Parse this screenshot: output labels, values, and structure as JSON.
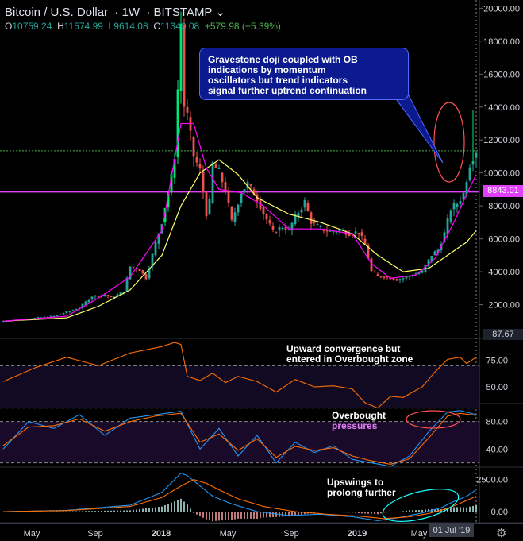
{
  "header": {
    "symbol": "Bitcoin / U.S. Dollar",
    "interval": "1W",
    "exchange": "BITSTAMP",
    "open_label": "O",
    "open": "10759.24",
    "high_label": "H",
    "high": "11574.99",
    "low_label": "L",
    "low": "9614.08",
    "close_label": "C",
    "close": "11340.08",
    "change": "+579.98 (+5.39%)"
  },
  "annotations": {
    "callout": [
      "Gravestone doji coupled with OB",
      "indications by momentum",
      "oscillators but trend indicators",
      "signal further uptrend continuation"
    ],
    "rsi_note": [
      "Upward convergence but",
      "entered in Overbought zone"
    ],
    "stoch_note_1": "Overbought",
    "stoch_note_2": "pressures",
    "macd_note": [
      "Upswings to",
      "prolong further"
    ]
  },
  "price_tags": {
    "horizontal_level": "8843.01",
    "crosshair": "87.67"
  },
  "date_tag": "01 Jul '19",
  "colors": {
    "up": "#26a69a",
    "up_bright": "#00e676",
    "down": "#ef5350",
    "sma_fast": "#ff00ff",
    "sma_slow": "#ffff66",
    "level_line": "#e040fb",
    "current_line": "#4caf50",
    "rsi": "#ff6d00",
    "stoch_k": "#2196f3",
    "stoch_d": "#ff6d00",
    "macd": "#2196f3",
    "signal": "#ff6d00",
    "callout_bg": "#0b1a8f"
  },
  "chart_data": [
    {
      "type": "candlestick",
      "panel": "price",
      "ylim": [
        0,
        20500
      ],
      "yticks": [
        "2000.00",
        "4000.00",
        "6000.00",
        "8000.00",
        "10000.00",
        "12000.00",
        "14000.00",
        "16000.00",
        "18000.00",
        "20000.00"
      ],
      "x_tick_labels": [
        "May",
        "Sep",
        "2018",
        "May",
        "Sep",
        "2019",
        "May"
      ],
      "horizontal_level": 8843.01,
      "current_price": 11340.08,
      "close_path": [
        [
          0,
          1000
        ],
        [
          8,
          1150
        ],
        [
          16,
          1300
        ],
        [
          24,
          1800
        ],
        [
          28,
          2500
        ],
        [
          32,
          2600
        ],
        [
          34,
          2400
        ],
        [
          38,
          2800
        ],
        [
          40,
          4300
        ],
        [
          43,
          4100
        ],
        [
          45,
          3600
        ],
        [
          48,
          5700
        ],
        [
          50,
          7000
        ],
        [
          53,
          9700
        ],
        [
          54,
          11000
        ],
        [
          55,
          15000
        ],
        [
          56,
          19000
        ],
        [
          57,
          14000
        ],
        [
          58,
          13400
        ],
        [
          60,
          11000
        ],
        [
          62,
          10100
        ],
        [
          64,
          7500
        ],
        [
          65,
          8200
        ],
        [
          66,
          10500
        ],
        [
          68,
          10000
        ],
        [
          70,
          8900
        ],
        [
          72,
          7000
        ],
        [
          75,
          8800
        ],
        [
          77,
          9300
        ],
        [
          80,
          8400
        ],
        [
          82,
          7500
        ],
        [
          85,
          6400
        ],
        [
          88,
          6700
        ],
        [
          90,
          6500
        ],
        [
          92,
          7300
        ],
        [
          95,
          8200
        ],
        [
          97,
          7000
        ],
        [
          100,
          6600
        ],
        [
          103,
          6400
        ],
        [
          106,
          6500
        ],
        [
          109,
          6300
        ],
        [
          112,
          6400
        ],
        [
          114,
          5600
        ],
        [
          116,
          4000
        ],
        [
          118,
          3700
        ],
        [
          120,
          3700
        ],
        [
          122,
          3600
        ],
        [
          124,
          3500
        ],
        [
          126,
          3600
        ],
        [
          129,
          3800
        ],
        [
          132,
          4000
        ],
        [
          135,
          5000
        ],
        [
          137,
          5300
        ],
        [
          139,
          6300
        ],
        [
          141,
          7800
        ],
        [
          143,
          8100
        ],
        [
          145,
          8700
        ],
        [
          147,
          10500
        ],
        [
          149,
          11340
        ]
      ],
      "sma_fast_path": [
        [
          0,
          1000
        ],
        [
          20,
          1300
        ],
        [
          30,
          2400
        ],
        [
          40,
          3700
        ],
        [
          50,
          6500
        ],
        [
          56,
          13000
        ],
        [
          60,
          13000
        ],
        [
          64,
          10300
        ],
        [
          68,
          9000
        ],
        [
          75,
          8800
        ],
        [
          82,
          8000
        ],
        [
          90,
          6600
        ],
        [
          100,
          6600
        ],
        [
          110,
          6300
        ],
        [
          116,
          4500
        ],
        [
          122,
          3600
        ],
        [
          130,
          3800
        ],
        [
          136,
          4800
        ],
        [
          142,
          7000
        ],
        [
          146,
          8700
        ],
        [
          149,
          9900
        ]
      ],
      "sma_slow_path": [
        [
          0,
          1000
        ],
        [
          20,
          1200
        ],
        [
          30,
          1900
        ],
        [
          40,
          2900
        ],
        [
          50,
          5000
        ],
        [
          56,
          8000
        ],
        [
          62,
          10000
        ],
        [
          68,
          10800
        ],
        [
          74,
          9900
        ],
        [
          80,
          8500
        ],
        [
          90,
          7500
        ],
        [
          100,
          7000
        ],
        [
          110,
          6300
        ],
        [
          118,
          5000
        ],
        [
          126,
          4000
        ],
        [
          134,
          4200
        ],
        [
          140,
          5000
        ],
        [
          146,
          5800
        ],
        [
          149,
          6500
        ]
      ]
    },
    {
      "type": "line",
      "panel": "rsi",
      "ylim": [
        35,
        95
      ],
      "yticks": [
        "50.00",
        "75.00"
      ],
      "levels": [
        70,
        30
      ],
      "values_path": [
        [
          0,
          55
        ],
        [
          10,
          68
        ],
        [
          20,
          78
        ],
        [
          30,
          70
        ],
        [
          40,
          82
        ],
        [
          50,
          88
        ],
        [
          54,
          92
        ],
        [
          56,
          90
        ],
        [
          58,
          60
        ],
        [
          62,
          56
        ],
        [
          66,
          63
        ],
        [
          70,
          54
        ],
        [
          74,
          60
        ],
        [
          80,
          55
        ],
        [
          86,
          45
        ],
        [
          92,
          57
        ],
        [
          98,
          50
        ],
        [
          104,
          51
        ],
        [
          110,
          48
        ],
        [
          114,
          35
        ],
        [
          118,
          30
        ],
        [
          122,
          41
        ],
        [
          126,
          40
        ],
        [
          132,
          50
        ],
        [
          136,
          64
        ],
        [
          140,
          76
        ],
        [
          144,
          78
        ],
        [
          146,
          72
        ],
        [
          149,
          78
        ]
      ]
    },
    {
      "type": "line",
      "panel": "stochastic",
      "ylim": [
        15,
        105
      ],
      "yticks": [
        "40.00",
        "80.00"
      ],
      "levels": [
        80,
        20
      ],
      "series": [
        {
          "values_path": [
            [
              0,
              40
            ],
            [
              8,
              80
            ],
            [
              16,
              70
            ],
            [
              24,
              90
            ],
            [
              32,
              60
            ],
            [
              40,
              85
            ],
            [
              48,
              90
            ],
            [
              56,
              95
            ],
            [
              62,
              40
            ],
            [
              68,
              70
            ],
            [
              74,
              30
            ],
            [
              80,
              60
            ],
            [
              86,
              20
            ],
            [
              92,
              50
            ],
            [
              98,
              35
            ],
            [
              104,
              45
            ],
            [
              110,
              25
            ],
            [
              116,
              20
            ],
            [
              122,
              15
            ],
            [
              128,
              30
            ],
            [
              134,
              65
            ],
            [
              140,
              94
            ],
            [
              144,
              96
            ],
            [
              149,
              90
            ]
          ]
        },
        {
          "values_path": [
            [
              0,
              45
            ],
            [
              8,
              72
            ],
            [
              16,
              74
            ],
            [
              24,
              84
            ],
            [
              32,
              66
            ],
            [
              40,
              80
            ],
            [
              48,
              88
            ],
            [
              56,
              92
            ],
            [
              62,
              50
            ],
            [
              68,
              62
            ],
            [
              74,
              38
            ],
            [
              80,
              55
            ],
            [
              86,
              28
            ],
            [
              92,
              44
            ],
            [
              98,
              38
            ],
            [
              104,
              42
            ],
            [
              110,
              30
            ],
            [
              116,
              23
            ],
            [
              122,
              18
            ],
            [
              128,
              26
            ],
            [
              134,
              56
            ],
            [
              140,
              88
            ],
            [
              144,
              92
            ],
            [
              149,
              89
            ]
          ]
        }
      ]
    },
    {
      "type": "line",
      "panel": "macd",
      "ylim": [
        -800,
        3400
      ],
      "yticks": [
        "0.00",
        "2500.00"
      ],
      "series": [
        {
          "values_path": [
            [
              0,
              0
            ],
            [
              20,
              100
            ],
            [
              40,
              500
            ],
            [
              50,
              1500
            ],
            [
              54,
              2500
            ],
            [
              56,
              3000
            ],
            [
              58,
              2800
            ],
            [
              62,
              2000
            ],
            [
              66,
              1200
            ],
            [
              72,
              600
            ],
            [
              80,
              0
            ],
            [
              90,
              -300
            ],
            [
              100,
              -200
            ],
            [
              110,
              -400
            ],
            [
              118,
              -700
            ],
            [
              124,
              -500
            ],
            [
              132,
              -100
            ],
            [
              138,
              300
            ],
            [
              142,
              800
            ],
            [
              146,
              1200
            ],
            [
              149,
              1700
            ]
          ]
        },
        {
          "values_path": [
            [
              0,
              0
            ],
            [
              20,
              80
            ],
            [
              40,
              400
            ],
            [
              50,
              1100
            ],
            [
              56,
              2000
            ],
            [
              60,
              2500
            ],
            [
              64,
              2200
            ],
            [
              68,
              1700
            ],
            [
              74,
              1000
            ],
            [
              82,
              400
            ],
            [
              92,
              0
            ],
            [
              102,
              -200
            ],
            [
              112,
              -350
            ],
            [
              120,
              -550
            ],
            [
              128,
              -400
            ],
            [
              134,
              -150
            ],
            [
              140,
              250
            ],
            [
              144,
              650
            ],
            [
              149,
              1200
            ]
          ]
        }
      ]
    }
  ]
}
